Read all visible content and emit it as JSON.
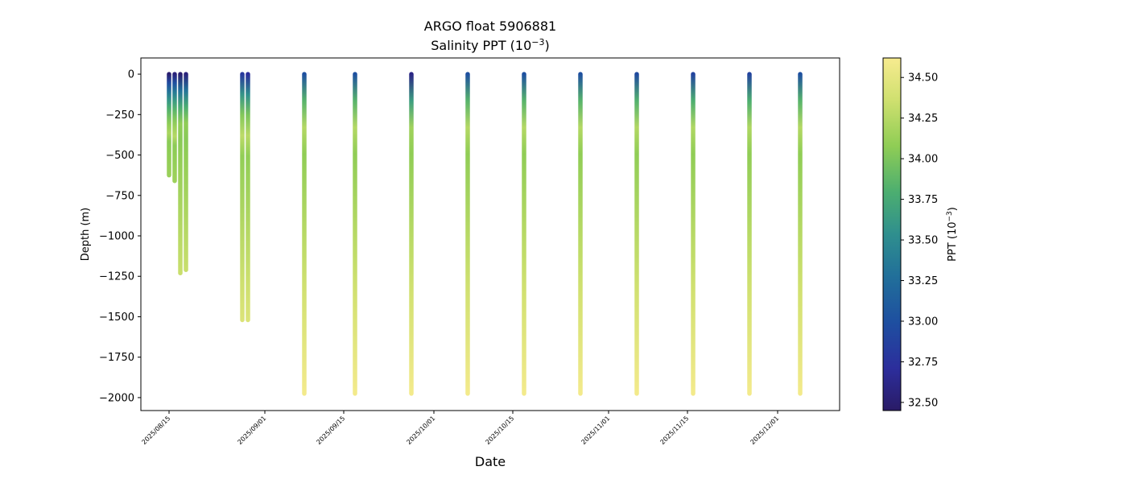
{
  "chart_data": {
    "type": "scatter",
    "title": "ARGO float 5906881",
    "subtitle_prefix": "Salinity PPT (10",
    "subtitle_exp": "−3",
    "subtitle_suffix": ")",
    "xlabel": "Date",
    "ylabel": "Depth (m)",
    "colorbar_label_prefix": "PPT (10",
    "colorbar_label_exp": "−3",
    "colorbar_label_suffix": ")",
    "colormap": "viridis-like (blue-green-yellow)",
    "color_range": [
      32.45,
      34.62
    ],
    "colorbar_ticks": [
      "32.50",
      "32.75",
      "33.00",
      "33.25",
      "33.50",
      "33.75",
      "34.00",
      "34.25",
      "34.50"
    ],
    "y_ticks": [
      "0",
      "−250",
      "−500",
      "−750",
      "−1000",
      "−1250",
      "−1500",
      "−1750",
      "−2000"
    ],
    "y_tick_values": [
      0,
      -250,
      -500,
      -750,
      -1000,
      -1250,
      -1500,
      -1750,
      -2000
    ],
    "ylim": [
      -2080,
      100
    ],
    "x_ticks": [
      "2025/08/15",
      "2025/09/01",
      "2025/09/15",
      "2025/10/01",
      "2025/10/15",
      "2025/11/01",
      "2025/11/15",
      "2025/12/01"
    ],
    "xlim": [
      "2025-08-10",
      "2025-12-12"
    ],
    "profiles": [
      {
        "date": "2025-08-15",
        "max_depth": -625,
        "surface_salinity": 32.5
      },
      {
        "date": "2025-08-16",
        "max_depth": -660,
        "surface_salinity": 32.55
      },
      {
        "date": "2025-08-17",
        "max_depth": -1230,
        "surface_salinity": 32.5
      },
      {
        "date": "2025-08-18",
        "max_depth": -1210,
        "surface_salinity": 32.55
      },
      {
        "date": "2025-08-28",
        "max_depth": -1520,
        "surface_salinity": 32.8
      },
      {
        "date": "2025-08-29",
        "max_depth": -1520,
        "surface_salinity": 32.7
      },
      {
        "date": "2025-09-08",
        "max_depth": -1975,
        "surface_salinity": 33.0
      },
      {
        "date": "2025-09-17",
        "max_depth": -1975,
        "surface_salinity": 33.0
      },
      {
        "date": "2025-09-27",
        "max_depth": -1975,
        "surface_salinity": 32.6
      },
      {
        "date": "2025-10-07",
        "max_depth": -1975,
        "surface_salinity": 33.0
      },
      {
        "date": "2025-10-17",
        "max_depth": -1975,
        "surface_salinity": 33.0
      },
      {
        "date": "2025-10-27",
        "max_depth": -1975,
        "surface_salinity": 33.0
      },
      {
        "date": "2025-11-06",
        "max_depth": -1975,
        "surface_salinity": 32.95
      },
      {
        "date": "2025-11-16",
        "max_depth": -1975,
        "surface_salinity": 32.9
      },
      {
        "date": "2025-11-26",
        "max_depth": -1975,
        "surface_salinity": 32.9
      },
      {
        "date": "2025-12-05",
        "max_depth": -1975,
        "surface_salinity": 33.0
      }
    ],
    "grid": false,
    "legend": "none"
  }
}
